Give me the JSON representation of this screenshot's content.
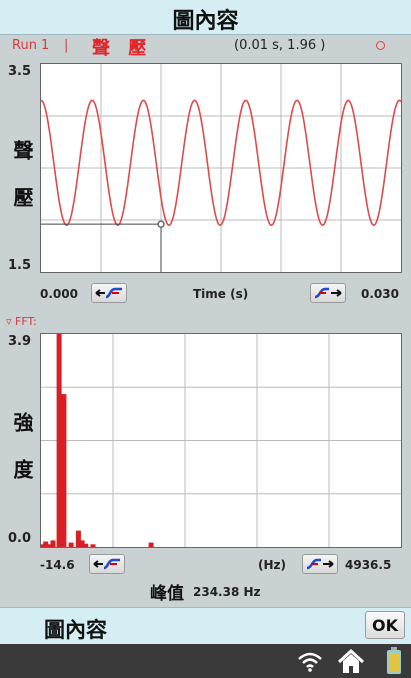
{
  "title": "圖內容",
  "header": {
    "run_label": "Run 1",
    "separator": "|",
    "quantity": "聲 壓",
    "coordinate": "(0.01 s, 1.96 )"
  },
  "time_plot": {
    "y_max": "3.5",
    "y_min": "1.5",
    "y_label": "聲 壓",
    "x_min": "0.000",
    "x_max": "0.030",
    "x_label": "Time (s)"
  },
  "fft": {
    "toggle_label": "FFT:",
    "y_max": "3.9",
    "y_min": "0.0",
    "y_label": "強 度",
    "x_min": "-14.6",
    "x_max": "4936.5",
    "x_unit": "(Hz)",
    "peak_label": "峰值",
    "peak_value": "234.38 Hz"
  },
  "bottom_title": "圖內容",
  "ok_label": "OK",
  "colors": {
    "trace": "#e04a4a",
    "fft_bar": "#d71f24",
    "title_bar": "#d4eef3",
    "status_bar": "#3a3a3a"
  },
  "status_icons": [
    "wifi-icon",
    "home-icon",
    "battery-icon"
  ],
  "chart_data": [
    {
      "type": "line",
      "title": "聲 壓",
      "xlabel": "Time (s)",
      "ylabel": "聲 壓",
      "xlim": [
        0.0,
        0.03
      ],
      "ylim": [
        1.5,
        3.5
      ],
      "series": [
        {
          "frequency_hz": 234.38,
          "offset": 2.55,
          "amplitude": 0.6
        }
      ],
      "cursor": {
        "x": 0.01,
        "y": 1.96
      },
      "grid": true
    },
    {
      "type": "bar",
      "title": "FFT",
      "xlabel": "(Hz)",
      "ylabel": "強 度",
      "xlim": [
        -14.6,
        4936.5
      ],
      "ylim": [
        0.0,
        3.9
      ],
      "x": [
        0,
        50,
        100,
        150,
        234.38,
        300,
        400,
        500,
        550,
        600,
        700,
        1500
      ],
      "values": [
        0.05,
        0.1,
        0.05,
        0.12,
        3.9,
        2.8,
        0.08,
        0.3,
        0.12,
        0.06,
        0.05,
        0.08
      ],
      "grid": true
    }
  ]
}
